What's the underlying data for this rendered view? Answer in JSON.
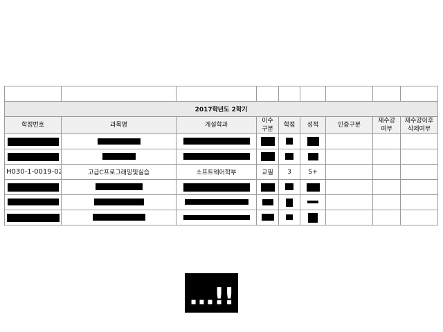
{
  "semester_title": "2017학년도 2학기",
  "columns": [
    "학정번호",
    "과목명",
    "개설학과",
    "이수구분",
    "학점",
    "성적",
    "인증구분",
    "재수강여부",
    "재수강이후삭제여부"
  ],
  "header_labels": {
    "code": "학정번호",
    "course": "과목명",
    "dept": "개설학과",
    "category_line1": "이수",
    "category_line2": "구분",
    "credits": "학점",
    "grade": "성적",
    "cert": "인증구분",
    "retake_line1": "재수강",
    "retake_line2": "여부",
    "retake_delete_line1": "재수강이후",
    "retake_delete_line2": "삭제여부"
  },
  "visible_row": {
    "code": "H030-1-0019-02",
    "course": "고급C프로그래밍및실습",
    "dept": "소프트웨어학부",
    "category": "교필",
    "credits": "3",
    "grade": "S+"
  },
  "logo_text": "...!!"
}
